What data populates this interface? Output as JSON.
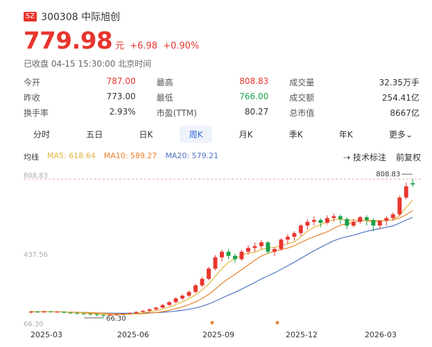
{
  "stock": {
    "market": "SZ",
    "code_name": "300308 中际旭创",
    "price": "779.98",
    "unit": "元",
    "change": "+6.98",
    "change_pct": "+0.90%",
    "status": "已收盘 04-15 15:30:00 北京时间"
  },
  "stats": [
    [
      {
        "k": "今开",
        "v": "787.00",
        "c": "red"
      },
      {
        "k": "最高",
        "v": "808.83",
        "c": "red"
      },
      {
        "k": "成交量",
        "v": "32.35万手",
        "c": "dark"
      }
    ],
    [
      {
        "k": "昨收",
        "v": "773.00",
        "c": "dark"
      },
      {
        "k": "最低",
        "v": "766.00",
        "c": "green"
      },
      {
        "k": "成交额",
        "v": "254.41亿",
        "c": "dark"
      }
    ],
    [
      {
        "k": "换手率",
        "v": "2.93%",
        "c": "dark"
      },
      {
        "k": "市盈(TTM)",
        "v": "80.27",
        "c": "dark"
      },
      {
        "k": "总市值",
        "v": "8667亿",
        "c": "dark"
      }
    ]
  ],
  "tabs": [
    "分时",
    "五日",
    "日K",
    "周K",
    "月K",
    "季K",
    "年K",
    "更多⌄"
  ],
  "active_tab": "周K",
  "ma": {
    "label": "均线",
    "ma5": "MA5: 618.64",
    "ma10": "MA10: 589.27",
    "ma20": "MA20: 579.21"
  },
  "tools": {
    "tech": "技术标注",
    "adjust": "前复权"
  },
  "chart_data": {
    "type": "candlestick",
    "y_labels": [
      "808.83",
      "437.56",
      "66.30"
    ],
    "y_values": [
      808.83,
      437.56,
      66.3
    ],
    "max_annotation": "808.83",
    "min_annotation": "66.30",
    "x_labels": [
      "2025-03",
      "2025-06",
      "2025-09",
      "2025-12",
      "2026-03"
    ],
    "colors": {
      "up": "#e8352e",
      "down": "#1aa24a",
      "ma5": "#e3b33b",
      "ma10": "#e8812e",
      "ma20": "#5073c4"
    },
    "candles": [
      [
        95,
        100,
        90,
        102
      ],
      [
        100,
        96,
        93,
        103
      ],
      [
        96,
        101,
        92,
        104
      ],
      [
        101,
        97,
        94,
        103
      ],
      [
        97,
        99,
        93,
        102
      ],
      [
        99,
        94,
        91,
        101
      ],
      [
        94,
        92,
        88,
        97
      ],
      [
        92,
        90,
        84,
        95
      ],
      [
        90,
        88,
        82,
        93
      ],
      [
        88,
        86,
        79,
        91
      ],
      [
        86,
        82,
        74,
        89
      ],
      [
        82,
        80,
        66.3,
        85
      ],
      [
        80,
        83,
        75,
        86
      ],
      [
        83,
        85,
        78,
        88
      ],
      [
        85,
        88,
        82,
        90
      ],
      [
        88,
        92,
        85,
        95
      ],
      [
        92,
        98,
        89,
        101
      ],
      [
        98,
        104,
        95,
        107
      ],
      [
        104,
        112,
        101,
        116
      ],
      [
        112,
        121,
        108,
        125
      ],
      [
        121,
        135,
        118,
        140
      ],
      [
        135,
        150,
        130,
        156
      ],
      [
        150,
        170,
        146,
        176
      ],
      [
        170,
        185,
        160,
        192
      ],
      [
        185,
        205,
        178,
        212
      ],
      [
        205,
        240,
        198,
        248
      ],
      [
        240,
        275,
        232,
        285
      ],
      [
        275,
        330,
        268,
        340
      ],
      [
        330,
        390,
        320,
        402
      ],
      [
        390,
        420,
        368,
        430
      ],
      [
        420,
        398,
        380,
        435
      ],
      [
        398,
        380,
        360,
        410
      ],
      [
        380,
        420,
        372,
        430
      ],
      [
        420,
        440,
        405,
        455
      ],
      [
        440,
        450,
        420,
        470
      ],
      [
        450,
        470,
        435,
        482
      ],
      [
        470,
        420,
        410,
        475
      ],
      [
        420,
        435,
        398,
        445
      ],
      [
        435,
        485,
        425,
        492
      ],
      [
        485,
        500,
        460,
        515
      ],
      [
        500,
        520,
        480,
        530
      ],
      [
        520,
        560,
        505,
        570
      ],
      [
        560,
        580,
        540,
        595
      ],
      [
        580,
        590,
        560,
        610
      ],
      [
        590,
        575,
        550,
        600
      ],
      [
        575,
        600,
        565,
        615
      ],
      [
        600,
        610,
        580,
        625
      ],
      [
        610,
        595,
        570,
        620
      ],
      [
        595,
        560,
        540,
        605
      ],
      [
        560,
        580,
        550,
        595
      ],
      [
        580,
        605,
        570,
        612
      ],
      [
        605,
        590,
        560,
        615
      ],
      [
        590,
        560,
        530,
        600
      ],
      [
        560,
        585,
        540,
        590
      ],
      [
        585,
        600,
        560,
        610
      ],
      [
        600,
        620,
        585,
        630
      ],
      [
        620,
        710,
        610,
        720
      ],
      [
        710,
        770,
        700,
        790
      ],
      [
        787,
        779.98,
        766,
        808.83
      ]
    ]
  }
}
